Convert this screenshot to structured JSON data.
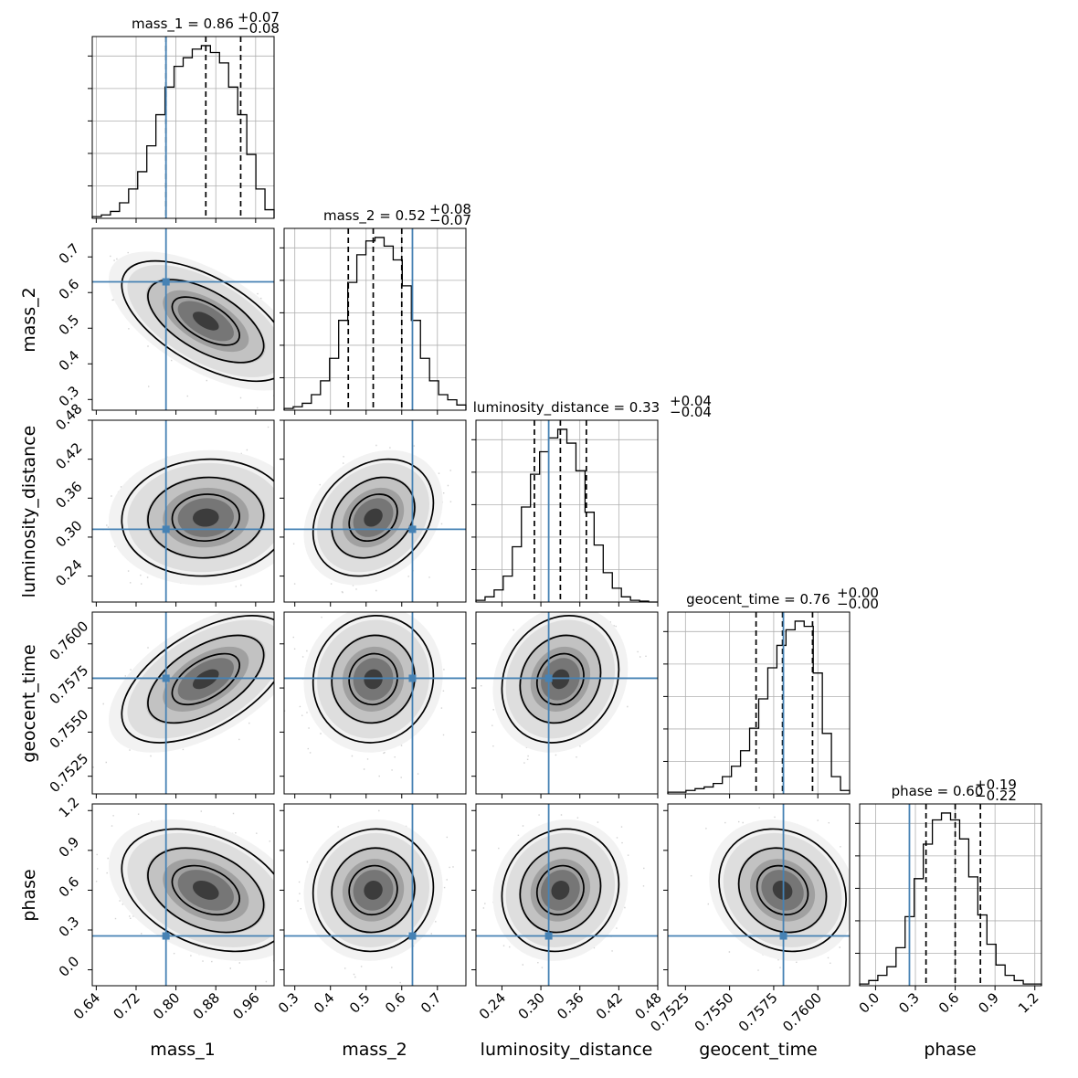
{
  "chart_data": {
    "type": "corner",
    "parameters": [
      "mass_1",
      "mass_2",
      "luminosity_distance",
      "geocent_time",
      "phase"
    ],
    "truths": [
      0.78,
      0.63,
      0.312,
      0.75805,
      0.255
    ],
    "medians": [
      0.86,
      0.52,
      0.33,
      0.758,
      0.6
    ],
    "quantiles_16_84": [
      [
        0.78,
        0.93
      ],
      [
        0.45,
        0.6
      ],
      [
        0.29,
        0.37
      ],
      [
        0.7565,
        0.7597
      ],
      [
        0.38,
        0.79
      ]
    ],
    "titles": [
      {
        "text": "mass_1 = 0.86",
        "plus": "+0.07",
        "minus": "−0.08"
      },
      {
        "text": "mass_2 = 0.52",
        "plus": "+0.08",
        "minus": "−0.07"
      },
      {
        "text": "luminosity_distance = 0.33",
        "plus": "+0.04",
        "minus": "−0.04"
      },
      {
        "text": "geocent_time = 0.76",
        "plus": "+0.00",
        "minus": "−0.00"
      },
      {
        "text": "phase = 0.60",
        "plus": "+0.19",
        "minus": "−0.22"
      }
    ],
    "ranges": [
      [
        0.632,
        0.997
      ],
      [
        0.27,
        0.78
      ],
      [
        0.2,
        0.48
      ],
      [
        0.7515,
        0.7618
      ],
      [
        -0.12,
        1.25
      ]
    ],
    "ticks": [
      [
        0.64,
        0.72,
        0.8,
        0.88,
        0.96
      ],
      [
        0.3,
        0.4,
        0.5,
        0.6,
        0.7
      ],
      [
        0.24,
        0.3,
        0.36,
        0.42,
        0.48
      ],
      [
        0.7525,
        0.755,
        0.7575,
        0.76
      ],
      [
        0.0,
        0.3,
        0.6,
        0.9,
        1.2
      ]
    ],
    "tick_labels": [
      [
        "0.64",
        "0.72",
        "0.80",
        "0.88",
        "0.96"
      ],
      [
        "0.3",
        "0.4",
        "0.5",
        "0.6",
        "0.7"
      ],
      [
        "0.24",
        "0.30",
        "0.36",
        "0.42",
        "0.48"
      ],
      [
        "0.7525",
        "0.7550",
        "0.7575",
        "0.7600"
      ],
      [
        "0.0",
        "0.3",
        "0.6",
        "0.9",
        "1.2"
      ]
    ],
    "histograms": [
      [
        0.01,
        0.02,
        0.04,
        0.09,
        0.17,
        0.27,
        0.42,
        0.6,
        0.76,
        0.88,
        0.93,
        0.98,
        1.0,
        0.96,
        0.9,
        0.76,
        0.6,
        0.37,
        0.17,
        0.05
      ],
      [
        0.01,
        0.02,
        0.04,
        0.09,
        0.17,
        0.3,
        0.52,
        0.74,
        0.9,
        0.98,
        1.0,
        0.95,
        0.87,
        0.72,
        0.52,
        0.3,
        0.17,
        0.09,
        0.06,
        0.03
      ],
      [
        0.01,
        0.03,
        0.07,
        0.15,
        0.32,
        0.55,
        0.74,
        0.87,
        0.95,
        1.0,
        0.92,
        0.76,
        0.52,
        0.33,
        0.17,
        0.08,
        0.03,
        0.01,
        0.005,
        0.0
      ],
      [
        0.01,
        0.01,
        0.02,
        0.03,
        0.04,
        0.06,
        0.1,
        0.16,
        0.25,
        0.38,
        0.55,
        0.73,
        0.86,
        0.95,
        1.0,
        0.97,
        0.7,
        0.35,
        0.1,
        0.02
      ],
      [
        0.01,
        0.03,
        0.06,
        0.11,
        0.22,
        0.4,
        0.62,
        0.82,
        0.96,
        1.0,
        0.96,
        0.85,
        0.63,
        0.41,
        0.24,
        0.12,
        0.06,
        0.03,
        0.01,
        0.01
      ]
    ],
    "correlations": {
      "1-0": -0.6,
      "2-0": 0.05,
      "2-1": 0.25,
      "3-0": 0.55,
      "3-1": 0.05,
      "3-2": 0.15,
      "4-0": -0.35,
      "4-1": 0.05,
      "4-2": 0.1,
      "4-3": -0.15
    },
    "colors": {
      "truth": "#4682b4",
      "hist": "#000000",
      "grid": "#b0b0b0"
    },
    "grid": true
  }
}
